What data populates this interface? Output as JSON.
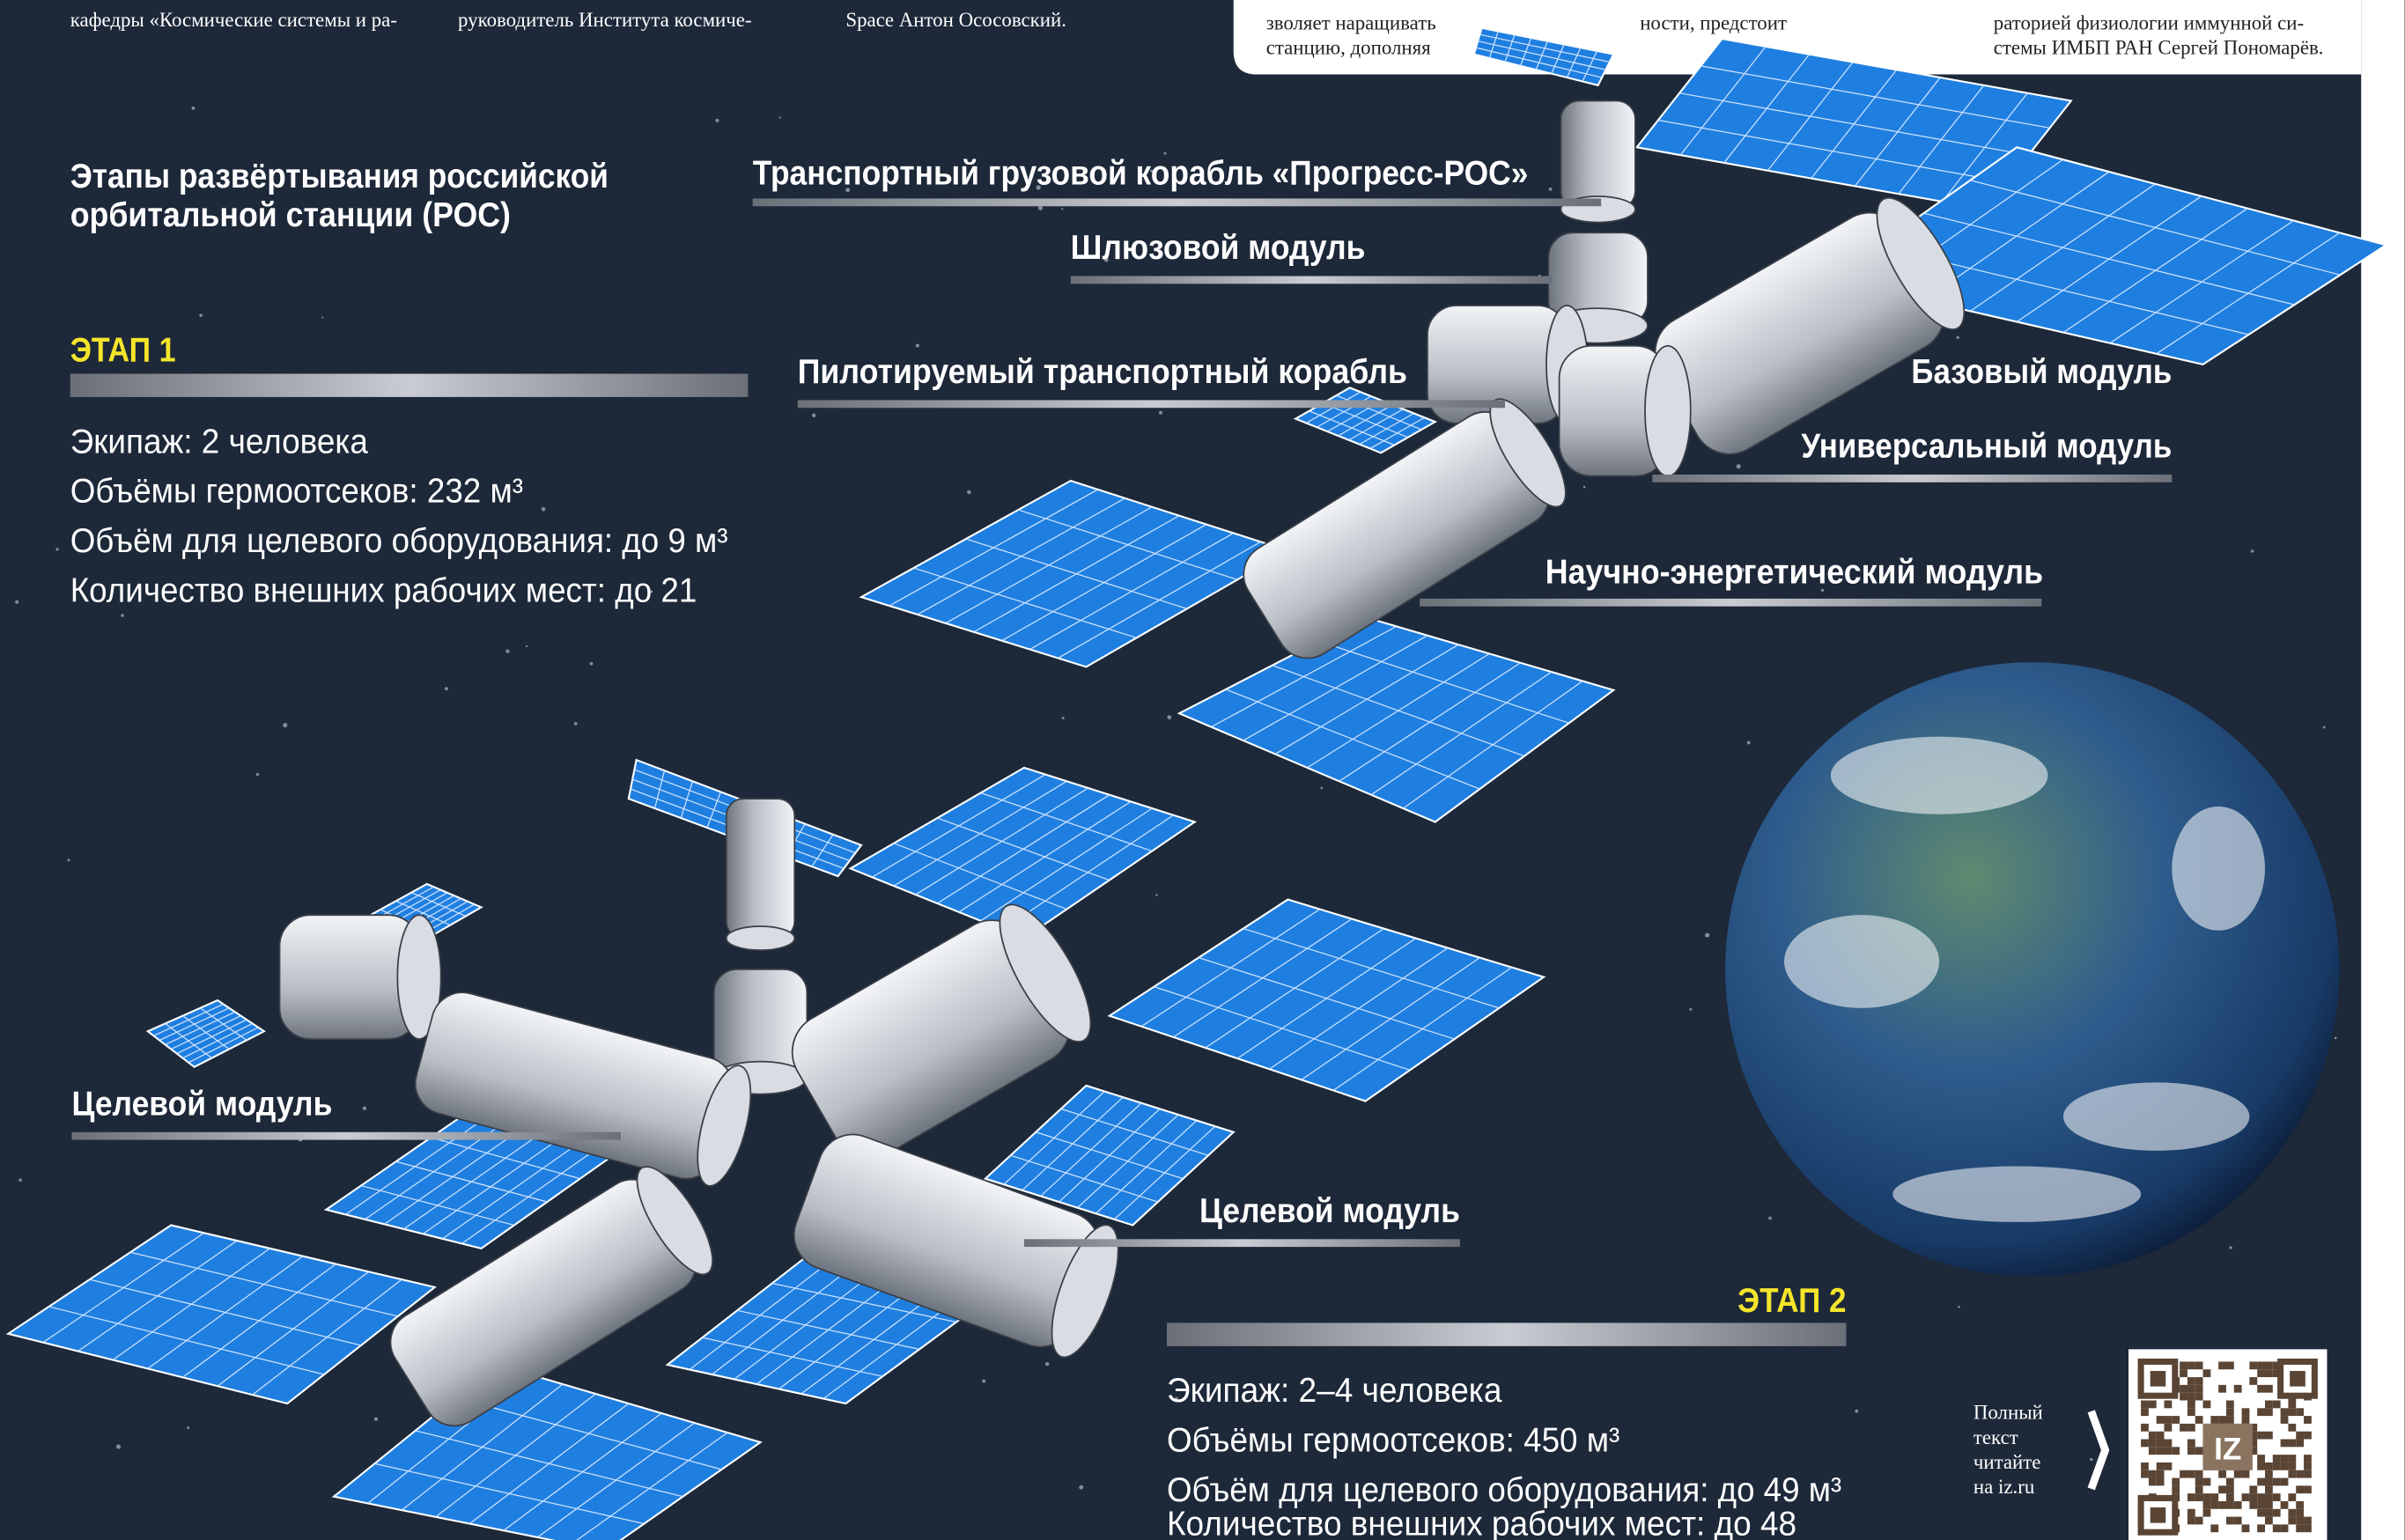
{
  "header_fragments": {
    "col1": "кафедры «Космические системы и ра-",
    "col2": "руководитель Института космиче-",
    "col3": "Space Антон Ососовский."
  },
  "info_box": {
    "col1": [
      "зволяет наращивать",
      "станцию, дополняя"
    ],
    "col2": [
      "ности, предстоит"
    ],
    "col3": [
      "раторией физиологии иммунной си-",
      "стемы ИМБП РАН Сергей Пономарёв."
    ]
  },
  "title": [
    "Этапы развёртывания российской",
    "орбитальной станции (РОС)"
  ],
  "stage1": {
    "heading": "ЭТАП 1",
    "specs": [
      "Экипаж: 2 человека",
      "Объёмы гермоотсеков: 232 м³",
      "Объём для целевого оборудования: до 9 м³",
      "Количество внешних рабочих мест: до 21"
    ]
  },
  "labels": {
    "progress": "Транспортный грузовой корабль «Прогресс-РОС»",
    "airlock": "Шлюзовой модуль",
    "crew_ship": "Пилотируемый транспортный корабль",
    "base": "Базовый модуль",
    "universal": "Универсальный модуль",
    "science_power": "Научно-энергетический модуль",
    "target_left": "Целевой модуль",
    "target_right": "Целевой модуль"
  },
  "stage2": {
    "heading": "ЭТАП 2",
    "specs": [
      "Экипаж: 2–4 человека",
      "Объёмы гермоотсеков: 450 м³",
      "Объём для целевого оборудования: до 49 м³",
      "Количество внешних рабочих мест: до 48"
    ]
  },
  "footer": {
    "read_more": [
      "Полный",
      "текст",
      "читайте",
      "на iz.ru"
    ],
    "qr_logo": "IZ"
  }
}
